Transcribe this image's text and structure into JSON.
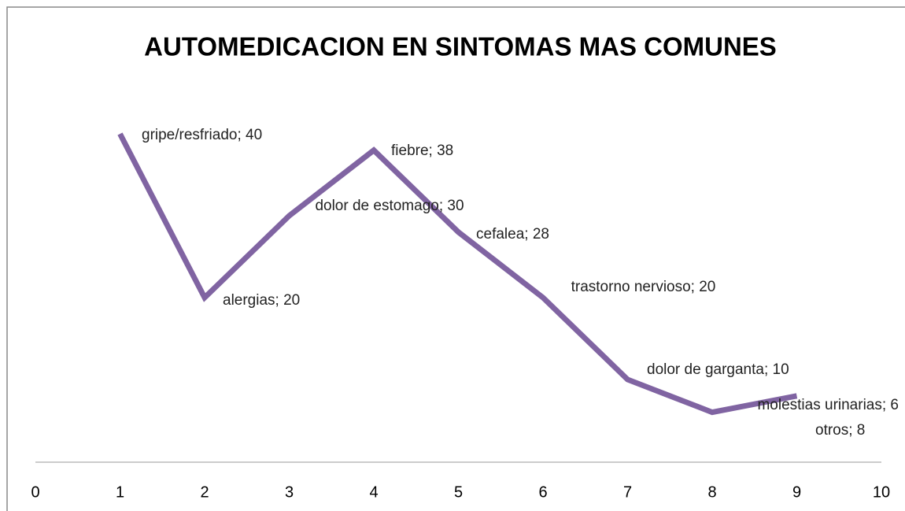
{
  "chart_data": {
    "type": "line",
    "title": "AUTOMEDICACION EN SINTOMAS MAS COMUNES",
    "x": [
      1,
      2,
      3,
      4,
      5,
      6,
      7,
      8,
      9
    ],
    "values": [
      40,
      20,
      30,
      38,
      28,
      20,
      10,
      6,
      8
    ],
    "value_labels": [
      "gripe/resfriado; 40",
      "alergias; 20",
      "dolor de estomago; 30",
      "fiebre; 38",
      "cefalea; 28",
      "trastorno nervioso; 20",
      "dolor de garganta; 10",
      "molestias urinarias; 6",
      "otros; 8"
    ],
    "color": "#8064a2",
    "xlim": [
      0,
      10
    ],
    "xticks": [
      0,
      1,
      2,
      3,
      4,
      5,
      6,
      7,
      8,
      9,
      10
    ],
    "ylim": [
      0,
      40
    ]
  }
}
